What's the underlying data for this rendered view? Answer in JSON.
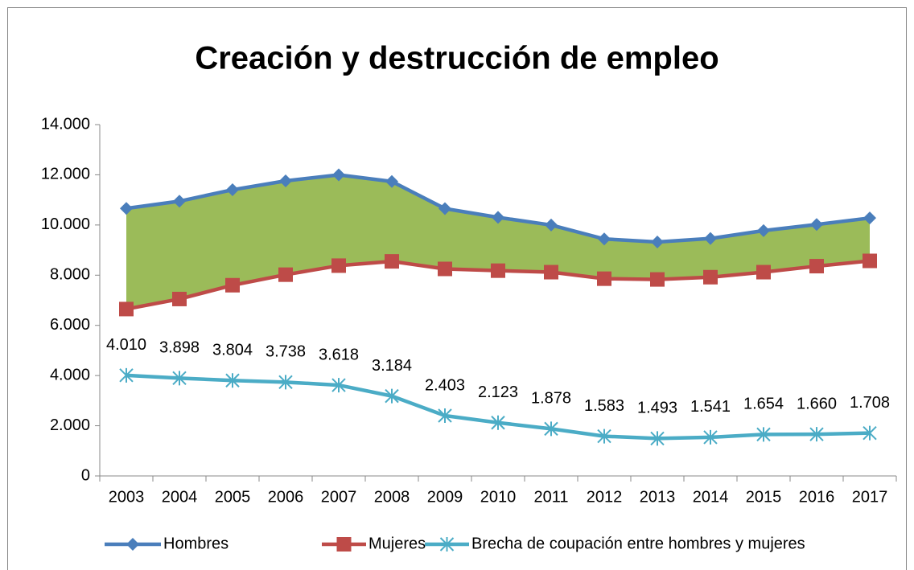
{
  "chart_data": {
    "type": "line",
    "title": "Creación y destrucción de empleo",
    "categories": [
      "2003",
      "2004",
      "2005",
      "2006",
      "2007",
      "2008",
      "2009",
      "2010",
      "2011",
      "2012",
      "2013",
      "2014",
      "2015",
      "2016",
      "2017"
    ],
    "series": [
      {
        "name": "Hombres",
        "color": "#4a7ebb",
        "marker": "diamond",
        "values": [
          10660,
          10948,
          11404,
          11758,
          11998,
          11734,
          10653,
          10303,
          9998,
          9443,
          9323,
          9461,
          9774,
          10020,
          10278
        ]
      },
      {
        "name": "Mujeres",
        "color": "#be4b48",
        "marker": "square",
        "values": [
          6650,
          7050,
          7600,
          8020,
          8380,
          8550,
          8250,
          8180,
          8120,
          7860,
          7830,
          7920,
          8120,
          8360,
          8570
        ]
      },
      {
        "name": "Brecha de coupación entre hombres y mujeres",
        "color": "#4bacc6",
        "marker": "asterisk",
        "values": [
          4010,
          3898,
          3804,
          3738,
          3618,
          3184,
          2403,
          2123,
          1878,
          1583,
          1493,
          1541,
          1654,
          1660,
          1708
        ],
        "value_labels": [
          "4.010",
          "3.898",
          "3.804",
          "3.738",
          "3.618",
          "3.184",
          "2.403",
          "2.123",
          "1.878",
          "1.583",
          "1.493",
          "1.541",
          "1.654",
          "1.660",
          "1.708"
        ]
      }
    ],
    "area_color": "#9bbb59",
    "ylim": [
      0,
      14000
    ],
    "yticks": [
      0,
      {
        "value": 2000,
        "label": "2.000"
      },
      {
        "value": 4000,
        "label": "4.000"
      },
      {
        "value": 6000,
        "label": "6.000"
      },
      {
        "value": 8000,
        "label": "8.000"
      },
      {
        "value": 10000,
        "label": "10.000"
      },
      {
        "value": 12000,
        "label": "12.000"
      },
      {
        "value": 14000,
        "label": "14.000"
      }
    ],
    "grid": false,
    "legend": "bottom"
  }
}
